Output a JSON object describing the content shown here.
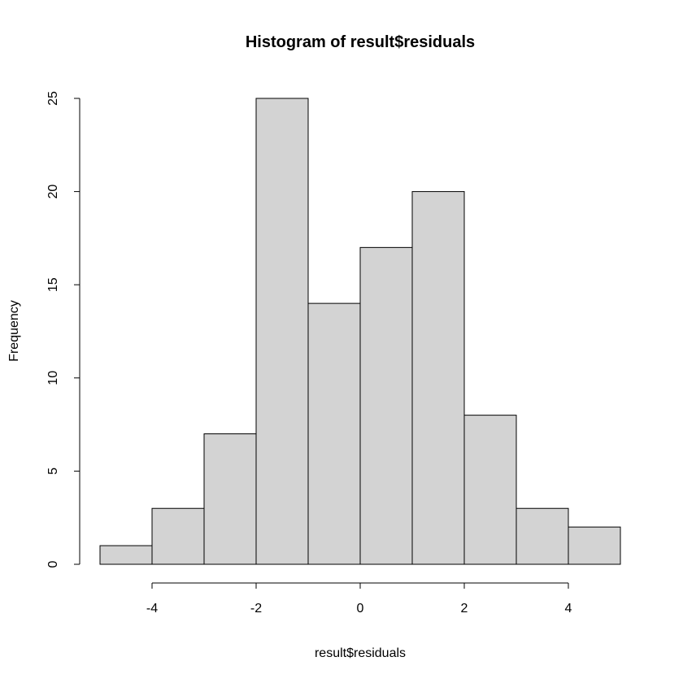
{
  "chart_data": {
    "type": "bar",
    "title": "Histogram of result$residuals",
    "xlabel": "result$residuals",
    "ylabel": "Frequency",
    "bin_edges": [
      -5,
      -4,
      -3,
      -2,
      -1,
      0,
      1,
      2,
      3,
      4,
      5
    ],
    "values": [
      1,
      3,
      7,
      25,
      14,
      17,
      20,
      8,
      3,
      2
    ],
    "xlim": [
      -5,
      5
    ],
    "ylim": [
      0,
      25
    ],
    "x_ticks": [
      -4,
      -2,
      0,
      2,
      4
    ],
    "x_tick_labels": [
      "-4",
      "-2",
      "0",
      "2",
      "4"
    ],
    "y_ticks": [
      0,
      5,
      10,
      15,
      20,
      25
    ],
    "y_tick_labels": [
      "0",
      "5",
      "10",
      "15",
      "20",
      "25"
    ],
    "bar_color": "#d3d3d3",
    "grid": false
  }
}
